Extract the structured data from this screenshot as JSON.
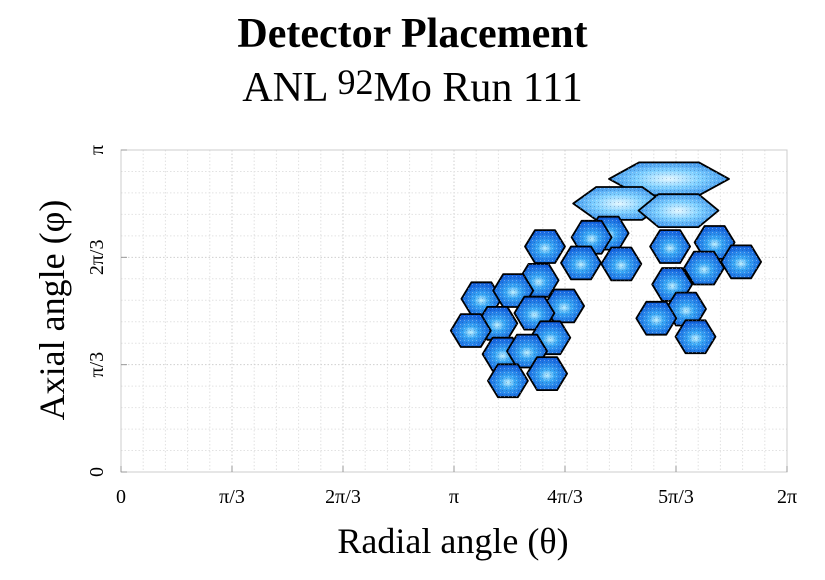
{
  "chart_data": {
    "type": "scatter",
    "title": "Detector Placement",
    "subtitle": {
      "prefix": "ANL ",
      "superscript": "92",
      "suffix": "Mo Run 111"
    },
    "xlabel": "Radial angle (θ)",
    "ylabel": "Axial angle (φ)",
    "xlim": [
      0,
      6.2832
    ],
    "ylim": [
      0,
      3.1416
    ],
    "grid": true,
    "x_tick_labels": [
      "0",
      "π/3",
      "2π/3",
      "π",
      "4π/3",
      "5π/3",
      "2π"
    ],
    "y_tick_labels": [
      "0",
      "π/3",
      "2π/3",
      "π"
    ],
    "marker": "hexagon",
    "colors": {
      "fill_light": "#bfeeff",
      "fill_mid": "#3aa8f5",
      "fill_dark": "#0a4fd6",
      "outline": "#000000"
    },
    "detectors": [
      {
        "theta": 5.17,
        "phi": 2.86,
        "wide": 2
      },
      {
        "theta": 4.7,
        "phi": 2.62,
        "wide": 1.3
      },
      {
        "theta": 5.26,
        "phi": 2.55,
        "wide": 1
      },
      {
        "theta": 4.6,
        "phi": 2.33,
        "wide": 0
      },
      {
        "theta": 4.44,
        "phi": 2.29,
        "wide": 0
      },
      {
        "theta": 4.0,
        "phi": 2.2,
        "wide": 0
      },
      {
        "theta": 5.18,
        "phi": 2.2,
        "wide": 0
      },
      {
        "theta": 5.6,
        "phi": 2.24,
        "wide": 0
      },
      {
        "theta": 4.34,
        "phi": 2.04,
        "wide": 0
      },
      {
        "theta": 4.72,
        "phi": 2.03,
        "wide": 0
      },
      {
        "theta": 5.5,
        "phi": 1.99,
        "wide": 0
      },
      {
        "theta": 5.85,
        "phi": 2.05,
        "wide": 0
      },
      {
        "theta": 3.94,
        "phi": 1.87,
        "wide": 0
      },
      {
        "theta": 5.2,
        "phi": 1.83,
        "wide": 0
      },
      {
        "theta": 3.4,
        "phi": 1.69,
        "wide": 0
      },
      {
        "theta": 3.7,
        "phi": 1.77,
        "wide": 0
      },
      {
        "theta": 4.18,
        "phi": 1.62,
        "wide": 0
      },
      {
        "theta": 5.33,
        "phi": 1.59,
        "wide": 0
      },
      {
        "theta": 3.55,
        "phi": 1.45,
        "wide": 0
      },
      {
        "theta": 3.9,
        "phi": 1.55,
        "wide": 0
      },
      {
        "theta": 5.05,
        "phi": 1.5,
        "wide": 0
      },
      {
        "theta": 3.3,
        "phi": 1.38,
        "wide": 0
      },
      {
        "theta": 4.05,
        "phi": 1.31,
        "wide": 0
      },
      {
        "theta": 5.42,
        "phi": 1.32,
        "wide": 0
      },
      {
        "theta": 3.6,
        "phi": 1.15,
        "wide": 0
      },
      {
        "theta": 3.83,
        "phi": 1.18,
        "wide": 0
      },
      {
        "theta": 3.65,
        "phi": 0.89,
        "wide": 0
      },
      {
        "theta": 4.02,
        "phi": 0.96,
        "wide": 0
      }
    ]
  }
}
